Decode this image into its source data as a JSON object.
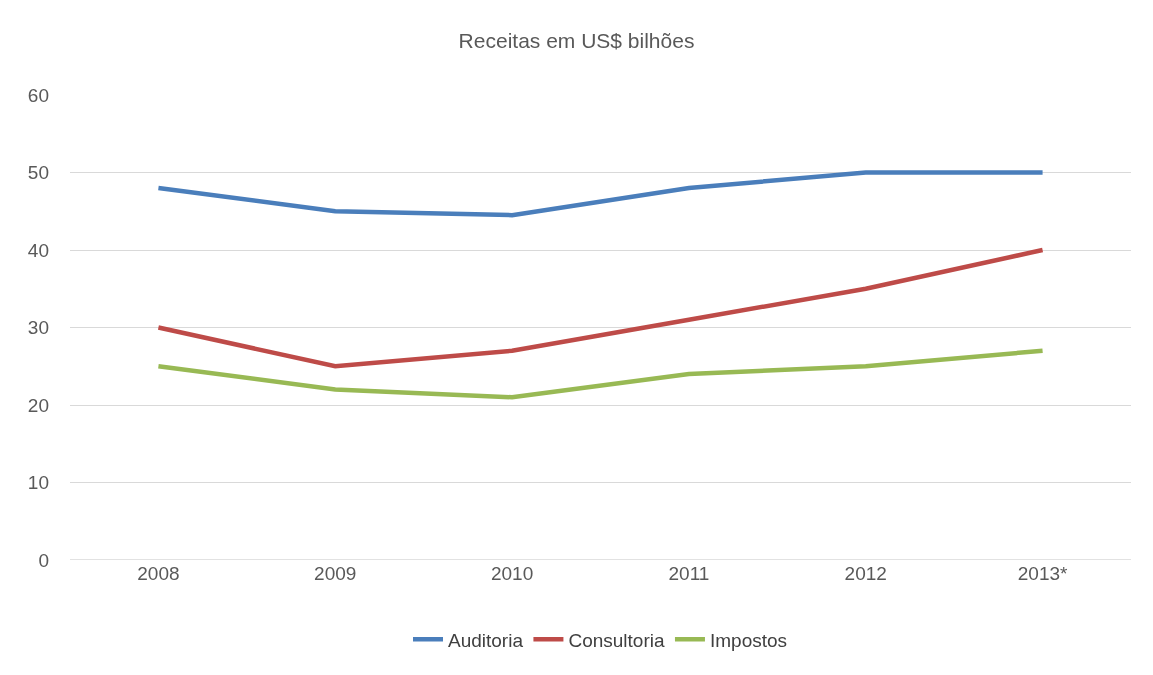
{
  "chart_data": {
    "type": "line",
    "title": "Receitas em US$ bilhões",
    "categories": [
      "2008",
      "2009",
      "2010",
      "2011",
      "2012",
      "2013*"
    ],
    "series": [
      {
        "name": "Auditoria",
        "color": "#4a7ebb",
        "values": [
          48,
          45,
          44.5,
          48,
          50,
          50
        ]
      },
      {
        "name": "Consultoria",
        "color": "#be4b48",
        "values": [
          30,
          25,
          27,
          31,
          35,
          40
        ]
      },
      {
        "name": "Impostos",
        "color": "#98b954",
        "values": [
          25,
          22,
          21,
          24,
          25,
          27
        ]
      }
    ],
    "ylim": [
      0,
      60
    ],
    "yticks": [
      0,
      10,
      20,
      30,
      40,
      50,
      60
    ],
    "grid": "y",
    "legend": "bottom",
    "marker": "none",
    "line_style": "solid"
  }
}
